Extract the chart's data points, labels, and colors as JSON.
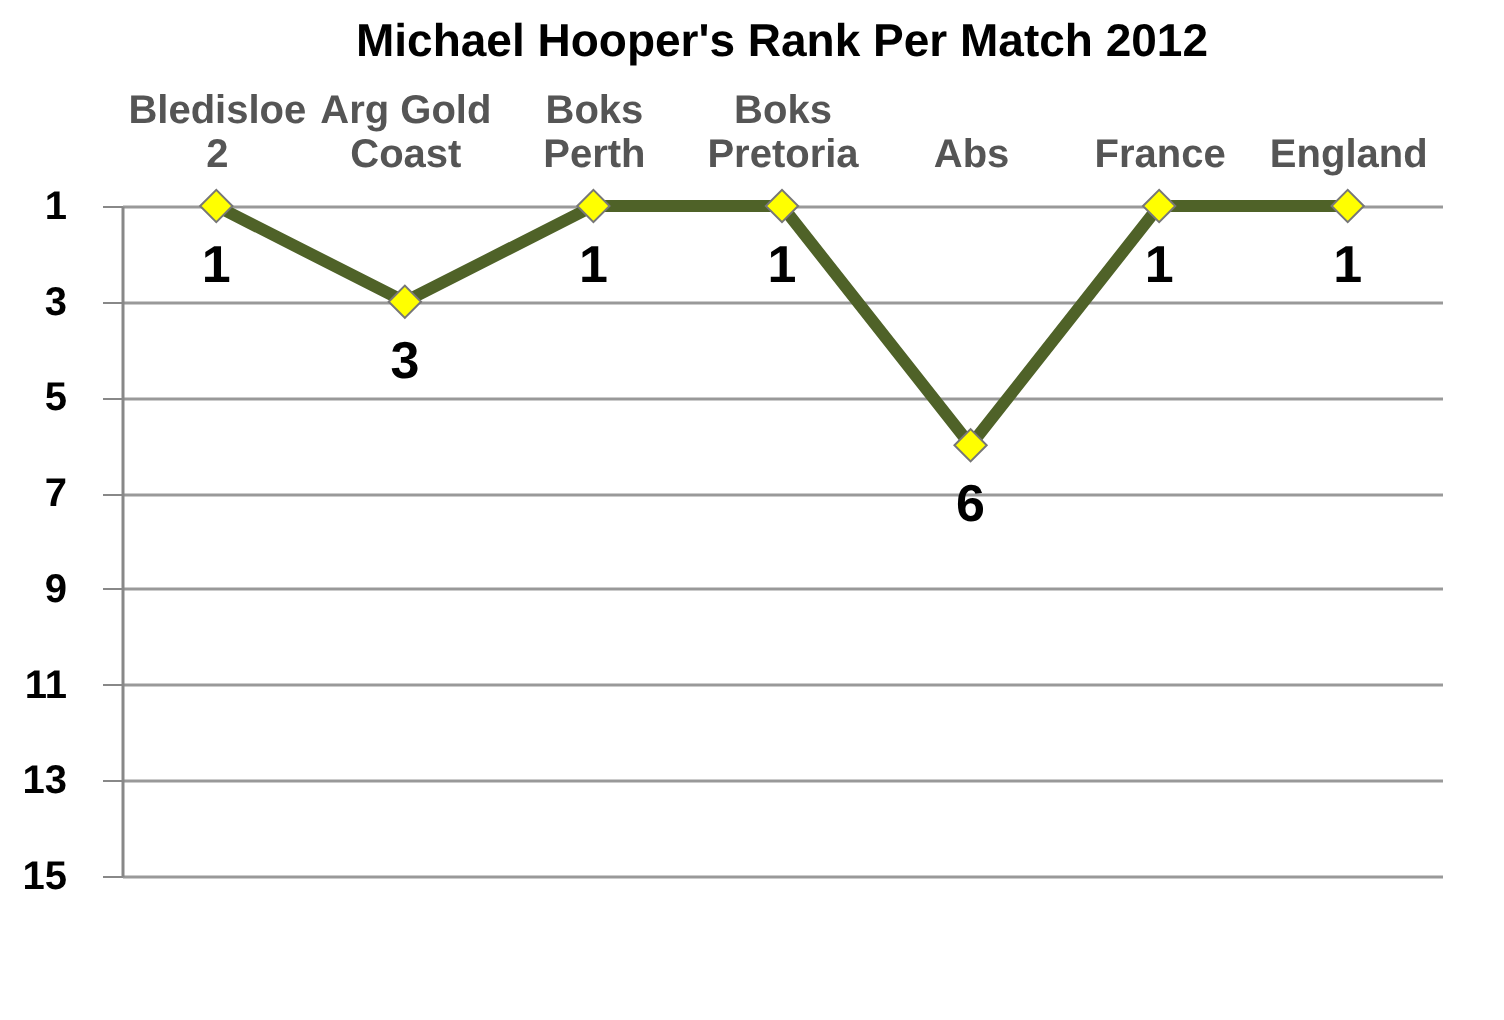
{
  "chart_data": {
    "type": "line",
    "title": "Michael Hooper's Rank Per Match 2012",
    "categories": [
      "Bledisloe\n2",
      "Arg Gold\nCoast",
      "Boks\nPerth",
      "Boks\nPretoria",
      "Abs",
      "France",
      "England"
    ],
    "series": [
      {
        "color": "#4f6228",
        "values": [
          1,
          3,
          1,
          1,
          6,
          1,
          1
        ]
      }
    ],
    "ylim": [
      15,
      1
    ],
    "yticks": [
      1,
      3,
      5,
      7,
      9,
      11,
      13,
      15
    ],
    "grid": "y",
    "line_style": "solid",
    "marker": "diamond",
    "data_labels": true,
    "legend": false
  }
}
